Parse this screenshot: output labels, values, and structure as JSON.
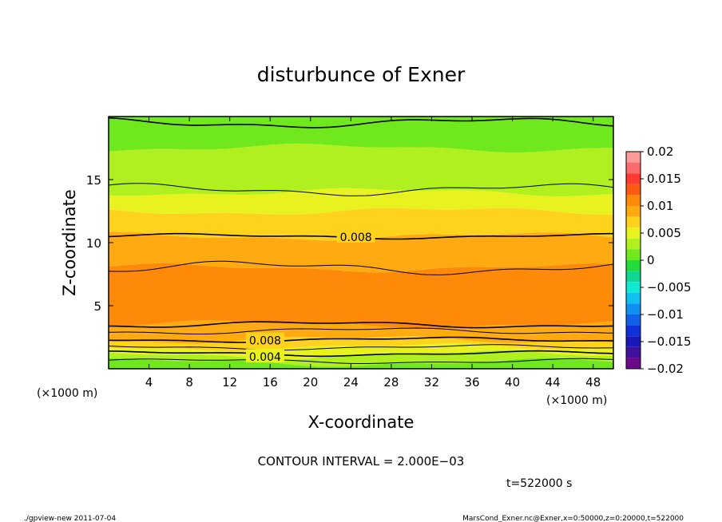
{
  "chart_data": {
    "type": "heatmap",
    "title": "disturbunce of Exner",
    "xlabel": "X-coordinate",
    "ylabel": "Z-coordinate",
    "x_unit_left": "(×1000 m)",
    "x_unit_right": "(×1000 m)",
    "xlim": [
      0,
      50
    ],
    "ylim": [
      0,
      20
    ],
    "x_ticks": [
      4,
      8,
      12,
      16,
      20,
      24,
      28,
      32,
      36,
      40,
      44,
      48
    ],
    "y_ticks": [
      5,
      10,
      15
    ],
    "colorbar": {
      "range": [
        -0.02,
        0.02
      ],
      "tick_values": [
        0.02,
        0.015,
        0.01,
        0.005,
        0,
        -0.005,
        -0.01,
        -0.015,
        -0.02
      ],
      "tick_labels": [
        "0.02",
        "0.015",
        "0.01",
        "0.005",
        "0",
        "−0.005",
        "−0.01",
        "−0.015",
        "−0.02"
      ],
      "levels": [
        {
          "from": 0.018,
          "to": 0.02,
          "color": "#ff9a9a"
        },
        {
          "from": 0.016,
          "to": 0.018,
          "color": "#ff6a6a"
        },
        {
          "from": 0.014,
          "to": 0.016,
          "color": "#ff3a30"
        },
        {
          "from": 0.012,
          "to": 0.014,
          "color": "#ff5a14"
        },
        {
          "from": 0.01,
          "to": 0.012,
          "color": "#ff8a0a"
        },
        {
          "from": 0.008,
          "to": 0.01,
          "color": "#ffaa10"
        },
        {
          "from": 0.006,
          "to": 0.008,
          "color": "#ffd21e"
        },
        {
          "from": 0.004,
          "to": 0.006,
          "color": "#e8f21e"
        },
        {
          "from": 0.002,
          "to": 0.004,
          "color": "#b0f01e"
        },
        {
          "from": 0.0,
          "to": 0.002,
          "color": "#70e81e"
        },
        {
          "from": -0.002,
          "to": 0.0,
          "color": "#22dc3c"
        },
        {
          "from": -0.004,
          "to": -0.002,
          "color": "#10d890"
        },
        {
          "from": -0.006,
          "to": -0.004,
          "color": "#10e8d0"
        },
        {
          "from": -0.008,
          "to": -0.006,
          "color": "#10c0f0"
        },
        {
          "from": -0.01,
          "to": -0.008,
          "color": "#1090f0"
        },
        {
          "from": -0.012,
          "to": -0.01,
          "color": "#1060e8"
        },
        {
          "from": -0.014,
          "to": -0.012,
          "color": "#1030d8"
        },
        {
          "from": -0.016,
          "to": -0.014,
          "color": "#1818b8"
        },
        {
          "from": -0.018,
          "to": -0.016,
          "color": "#40109a"
        },
        {
          "from": -0.02,
          "to": -0.018,
          "color": "#6a0a8a"
        }
      ]
    },
    "field_bands": [
      {
        "z_from": 0.0,
        "z_to": 0.5,
        "value": 0.0005
      },
      {
        "z_from": 0.5,
        "z_to": 1.1,
        "value": 0.0025
      },
      {
        "z_from": 1.1,
        "z_to": 1.7,
        "value": 0.0045
      },
      {
        "z_from": 1.7,
        "z_to": 2.3,
        "value": 0.0065
      },
      {
        "z_from": 2.3,
        "z_to": 3.0,
        "value": 0.0085
      },
      {
        "z_from": 3.0,
        "z_to": 3.5,
        "value": 0.0095
      },
      {
        "z_from": 3.5,
        "z_to": 8.0,
        "value": 0.0105
      },
      {
        "z_from": 8.0,
        "z_to": 10.5,
        "value": 0.0085
      },
      {
        "z_from": 10.5,
        "z_to": 12.5,
        "value": 0.0065
      },
      {
        "z_from": 12.5,
        "z_to": 14.0,
        "value": 0.0045
      },
      {
        "z_from": 14.0,
        "z_to": 17.5,
        "value": 0.0025
      },
      {
        "z_from": 17.5,
        "z_to": 20.0,
        "value": 0.0005
      }
    ],
    "contours": [
      {
        "z": 0.6,
        "amp": 0.15
      },
      {
        "z": 1.2,
        "amp": 0.15
      },
      {
        "z": 1.7,
        "amp": 0.15
      },
      {
        "z": 2.3,
        "amp": 0.15
      },
      {
        "z": 3.0,
        "amp": 0.2
      },
      {
        "z": 3.5,
        "amp": 0.2
      },
      {
        "z": 8.0,
        "amp": 0.4
      },
      {
        "z": 10.5,
        "amp": 0.15
      },
      {
        "z": 14.2,
        "amp": 0.35
      },
      {
        "z": 19.5,
        "amp": 0.3
      }
    ],
    "contour_labels": [
      {
        "text": "0.008",
        "x": 24.5,
        "z": 10.5
      },
      {
        "text": "0.008",
        "x": 15.5,
        "z": 2.3
      },
      {
        "text": "0.004",
        "x": 15.5,
        "z": 1.0
      }
    ],
    "maxima_level": 0.0115,
    "maxima": [
      {
        "x": 8.0,
        "z": 5.0,
        "rx": 6.0,
        "rz": 0.8
      },
      {
        "x": 22.7,
        "z": 5.0,
        "rx": 2.2,
        "rz": 0.5
      },
      {
        "x": 30.5,
        "z": 5.0,
        "rx": 4.0,
        "rz": 0.85
      },
      {
        "x": 38.6,
        "z": 5.5,
        "rx": 1.4,
        "rz": 0.7
      },
      {
        "x": 43.5,
        "z": 5.5,
        "rx": 2.0,
        "rz": 0.8
      }
    ],
    "grid": false,
    "legend": "right"
  },
  "annotations": {
    "contour_interval": "CONTOUR INTERVAL = 2.000E−03",
    "time": "t=522000 s",
    "footer_left": "./gpview-new   2011-07-04",
    "footer_right": "MarsCond_Exner.nc@Exner,x=0:50000,z=0:20000,t=522000"
  }
}
